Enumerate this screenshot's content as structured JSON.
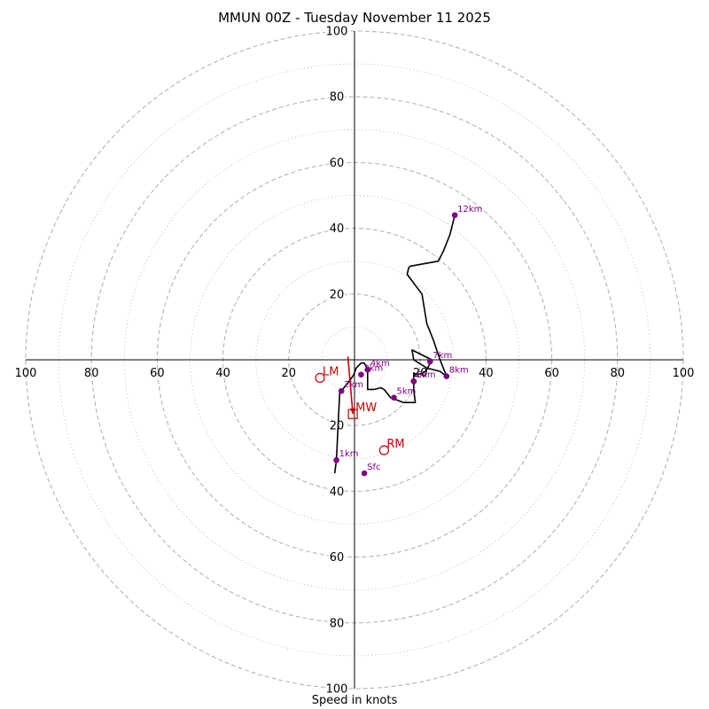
{
  "chart_data": {
    "type": "hodograph",
    "title": "MMUN 00Z - Tuesday November 11 2025",
    "xlabel": "Speed in knots",
    "range": [
      -100,
      100
    ],
    "rings_major": [
      20,
      40,
      60,
      80,
      100
    ],
    "rings_minor": [
      10,
      30,
      50,
      70,
      90
    ],
    "tick_labels": {
      "x_left": [
        "100",
        "80",
        "60",
        "40",
        "20"
      ],
      "x_right": [
        "20",
        "40",
        "60",
        "80",
        "100"
      ],
      "y_up": [
        "20",
        "40",
        "60",
        "80",
        "100"
      ],
      "y_down": [
        "20",
        "40",
        "60",
        "80",
        "100"
      ]
    },
    "trace": [
      [
        -6,
        -34.5
      ],
      [
        -5.5,
        -30.5
      ],
      [
        -4.5,
        -10
      ],
      [
        -4,
        -9.5
      ],
      [
        -4,
        -9.5
      ],
      [
        -0.5,
        -5
      ],
      [
        0,
        -4
      ],
      [
        0.5,
        -2.5
      ],
      [
        2,
        -1
      ],
      [
        3,
        -1
      ],
      [
        4,
        -3
      ],
      [
        4,
        -9
      ],
      [
        6,
        -9
      ],
      [
        8,
        -8.5
      ],
      [
        9,
        -9
      ],
      [
        11,
        -11.5
      ],
      [
        15,
        -13
      ],
      [
        18.5,
        -13
      ],
      [
        18,
        -9
      ],
      [
        18,
        -4
      ],
      [
        19,
        -4.5
      ],
      [
        21,
        -4
      ],
      [
        22,
        -3
      ],
      [
        23,
        -1
      ],
      [
        23.5,
        0
      ],
      [
        17.5,
        3
      ],
      [
        18,
        0
      ],
      [
        22,
        -2.5
      ],
      [
        24,
        -3
      ],
      [
        26,
        -3.5
      ],
      [
        28,
        -5
      ],
      [
        27,
        -2.5
      ],
      [
        26,
        0
      ],
      [
        24,
        6
      ],
      [
        22,
        11
      ],
      [
        20.5,
        20
      ],
      [
        16,
        26
      ],
      [
        16.5,
        28
      ],
      [
        17,
        28.5
      ],
      [
        25.5,
        30
      ],
      [
        27,
        33
      ],
      [
        29,
        38
      ],
      [
        30.5,
        44
      ]
    ],
    "mean_wind_vector": [
      [
        -2,
        1
      ],
      [
        -0.5,
        -16.5
      ]
    ],
    "height_markers": [
      {
        "label": "Sfc",
        "u": 3,
        "v": -34.5
      },
      {
        "label": "1km",
        "u": -5.5,
        "v": -30.5
      },
      {
        "label": "2km",
        "u": -4,
        "v": -9.5
      },
      {
        "label": "3km",
        "u": 2,
        "v": -4.5
      },
      {
        "label": "4km",
        "u": 4,
        "v": -3
      },
      {
        "label": "5km",
        "u": 12,
        "v": -11.5
      },
      {
        "label": "6km",
        "u": 18,
        "v": -6.5
      },
      {
        "label": "7km",
        "u": 23,
        "v": -0.5
      },
      {
        "label": "8km",
        "u": 28,
        "v": -5
      },
      {
        "label": "12km",
        "u": 30.5,
        "v": 44
      }
    ],
    "storm_motions": [
      {
        "label": "LM",
        "u": -10.5,
        "v": -5.5,
        "marker": "circle"
      },
      {
        "label": "RM",
        "u": 9,
        "v": -27.5,
        "marker": "circle"
      },
      {
        "label": "MW",
        "u": -0.5,
        "v": -16.5,
        "marker": "square"
      }
    ],
    "colors": {
      "trace": "#000000",
      "height_marker": "#800080",
      "storm_motion": "#cc0000",
      "ring": "#b4b4b4",
      "axis": "#000000"
    }
  }
}
